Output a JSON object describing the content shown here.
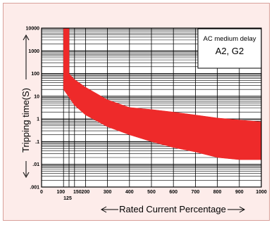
{
  "chart_data": {
    "type": "area",
    "title": "",
    "xlabel": "Rated Current Percentage",
    "ylabel": "Tripping time(S)",
    "scale": {
      "x": "linear",
      "y": "log"
    },
    "grid": {
      "x_lines": true,
      "y_log_minor_lines": true
    },
    "xlim": [
      0,
      1000
    ],
    "ylim": [
      0.001,
      10000
    ],
    "x_ticks": [
      {
        "value": 0,
        "label": "0"
      },
      {
        "value": 100,
        "label": "100"
      },
      {
        "value": 125,
        "label": "125"
      },
      {
        "value": 150,
        "label": "150"
      },
      {
        "value": 200,
        "label": "200"
      },
      {
        "value": 300,
        "label": "300"
      },
      {
        "value": 400,
        "label": "400"
      },
      {
        "value": 500,
        "label": "500"
      },
      {
        "value": 600,
        "label": "600"
      },
      {
        "value": 700,
        "label": "700"
      },
      {
        "value": 800,
        "label": "800"
      },
      {
        "value": 900,
        "label": "900"
      },
      {
        "value": 1000,
        "label": "1000"
      }
    ],
    "y_ticks": [
      {
        "value": 10000,
        "label": "10000"
      },
      {
        "value": 1000,
        "label": "1000"
      },
      {
        "value": 100,
        "label": "100"
      },
      {
        "value": 10,
        "label": "10"
      },
      {
        "value": 1,
        "label": "1"
      },
      {
        "value": 0.1,
        "label": ".1"
      },
      {
        "value": 0.01,
        "label": ".01"
      },
      {
        "value": 0.001,
        "label": ".001"
      }
    ],
    "band": {
      "color": "#ee2a2a",
      "upper": [
        {
          "x": 100,
          "y": 10000
        },
        {
          "x": 125,
          "y": 10000
        },
        {
          "x": 125,
          "y": 100
        },
        {
          "x": 150,
          "y": 55
        },
        {
          "x": 200,
          "y": 25
        },
        {
          "x": 300,
          "y": 7
        },
        {
          "x": 400,
          "y": 3.2
        },
        {
          "x": 500,
          "y": 2.6
        },
        {
          "x": 600,
          "y": 2.0
        },
        {
          "x": 700,
          "y": 1.5
        },
        {
          "x": 800,
          "y": 1.1
        },
        {
          "x": 900,
          "y": 0.9
        },
        {
          "x": 1000,
          "y": 0.75
        }
      ],
      "lower": [
        {
          "x": 100,
          "y": 20
        },
        {
          "x": 150,
          "y": 4
        },
        {
          "x": 200,
          "y": 1.5
        },
        {
          "x": 300,
          "y": 0.45
        },
        {
          "x": 400,
          "y": 0.2
        },
        {
          "x": 500,
          "y": 0.1
        },
        {
          "x": 600,
          "y": 0.055
        },
        {
          "x": 700,
          "y": 0.035
        },
        {
          "x": 800,
          "y": 0.02
        },
        {
          "x": 900,
          "y": 0.016
        },
        {
          "x": 1000,
          "y": 0.016
        }
      ]
    },
    "annotation": {
      "line1": "AC medium delay",
      "line2": "A2, G2"
    }
  }
}
